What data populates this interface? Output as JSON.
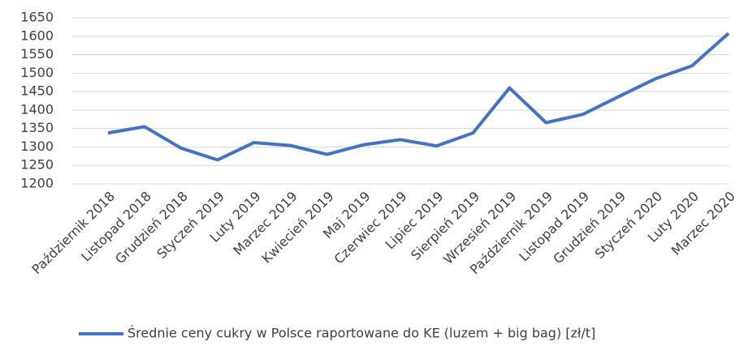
{
  "chart_data": {
    "type": "line",
    "categories": [
      "Październik 2018",
      "Listopad 2018",
      "Grudzień 2018",
      "Styczeń 2019",
      "Luty 2019",
      "Marzec 2019",
      "Kwiecień 2019",
      "Maj 2019",
      "Czerwiec 2019",
      "Lipiec 2019",
      "Sierpień 2019",
      "Wrzesień 2019",
      "Październik 2019",
      "Listopad 2019",
      "Grudzień 2019",
      "Styczeń 2020",
      "Luty 2020",
      "Marzec 2020"
    ],
    "series": [
      {
        "name": "Średnie ceny cukry w Polsce raportowane do KE (luzem + big bag) [zł/t]",
        "color": "#4472c4",
        "values": [
          1338,
          1355,
          1297,
          1265,
          1312,
          1304,
          1280,
          1306,
          1320,
          1303,
          1338,
          1460,
          1366,
          1388,
          1437,
          1485,
          1520,
          1608
        ]
      }
    ],
    "ylim": [
      1200,
      1650
    ],
    "yticks": [
      1200,
      1250,
      1300,
      1350,
      1400,
      1450,
      1500,
      1550,
      1600,
      1650
    ],
    "grid": true,
    "legend": "bottom"
  }
}
